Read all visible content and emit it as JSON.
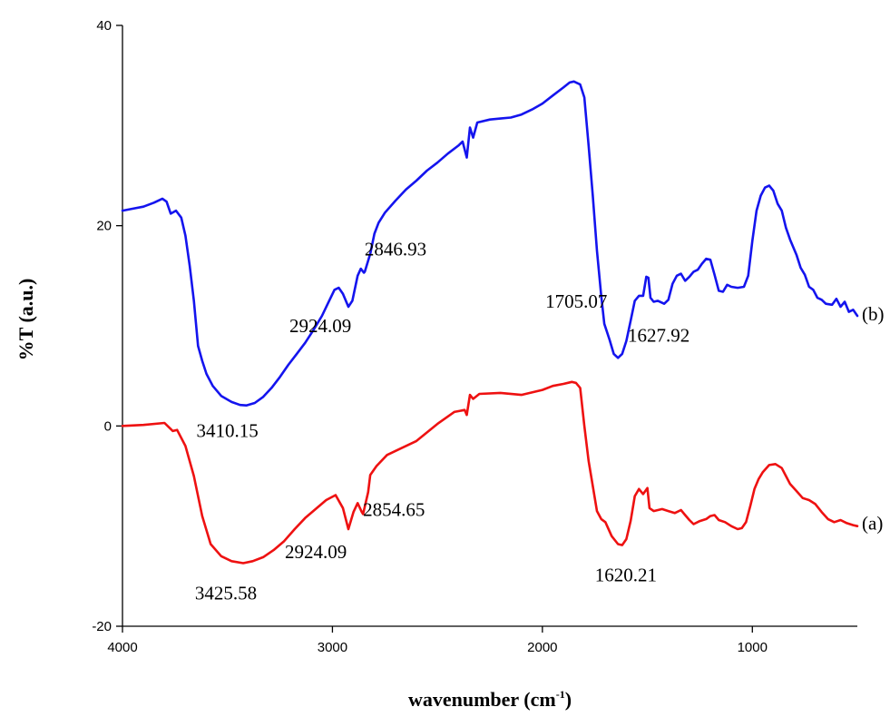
{
  "chart_data": {
    "type": "line",
    "xlabel": "wavenumber (cm",
    "xlabel_superscript": "-1",
    "xlabel_suffix": ")",
    "ylabel": "%T (a.u.)",
    "xlim": [
      4000,
      500
    ],
    "ylim": [
      -20,
      40
    ],
    "x_reversed": true,
    "x_ticks": [
      4000,
      3000,
      2000,
      1000
    ],
    "x_tick_labels": [
      "4000",
      "3000",
      "2000",
      "1000"
    ],
    "y_ticks": [
      -20,
      0,
      20,
      40
    ],
    "y_tick_labels": [
      "-20",
      "0",
      "20",
      "40"
    ],
    "grid": false,
    "series": [
      {
        "name": "(a)",
        "color": "#ee1111",
        "points": [
          [
            4000,
            0
          ],
          [
            3900,
            0.1
          ],
          [
            3800,
            0.3
          ],
          [
            3760,
            -0.5
          ],
          [
            3740,
            -0.4
          ],
          [
            3700,
            -2
          ],
          [
            3660,
            -5
          ],
          [
            3620,
            -9
          ],
          [
            3580,
            -11.8
          ],
          [
            3530,
            -13
          ],
          [
            3480,
            -13.5
          ],
          [
            3425,
            -13.7
          ],
          [
            3380,
            -13.5
          ],
          [
            3330,
            -13.1
          ],
          [
            3280,
            -12.4
          ],
          [
            3230,
            -11.5
          ],
          [
            3180,
            -10.3
          ],
          [
            3130,
            -9.2
          ],
          [
            3080,
            -8.3
          ],
          [
            3030,
            -7.4
          ],
          [
            2985,
            -6.9
          ],
          [
            2950,
            -8.2
          ],
          [
            2924,
            -10.3
          ],
          [
            2900,
            -8.6
          ],
          [
            2880,
            -7.7
          ],
          [
            2860,
            -8.6
          ],
          [
            2854,
            -8.8
          ],
          [
            2830,
            -6.6
          ],
          [
            2820,
            -4.9
          ],
          [
            2790,
            -4
          ],
          [
            2740,
            -2.9
          ],
          [
            2680,
            -2.3
          ],
          [
            2600,
            -1.5
          ],
          [
            2500,
            0.2
          ],
          [
            2420,
            1.4
          ],
          [
            2370,
            1.6
          ],
          [
            2360,
            1.1
          ],
          [
            2345,
            3.1
          ],
          [
            2330,
            2.7
          ],
          [
            2300,
            3.2
          ],
          [
            2200,
            3.3
          ],
          [
            2100,
            3.1
          ],
          [
            2000,
            3.6
          ],
          [
            1950,
            4
          ],
          [
            1900,
            4.2
          ],
          [
            1860,
            4.4
          ],
          [
            1840,
            4.3
          ],
          [
            1820,
            3.8
          ],
          [
            1800,
            0
          ],
          [
            1780,
            -3.5
          ],
          [
            1760,
            -6
          ],
          [
            1740,
            -8.5
          ],
          [
            1720,
            -9.3
          ],
          [
            1700,
            -9.6
          ],
          [
            1670,
            -11
          ],
          [
            1640,
            -11.8
          ],
          [
            1620,
            -11.9
          ],
          [
            1600,
            -11.3
          ],
          [
            1580,
            -9.5
          ],
          [
            1560,
            -7
          ],
          [
            1540,
            -6.3
          ],
          [
            1520,
            -6.8
          ],
          [
            1500,
            -6.2
          ],
          [
            1490,
            -8.2
          ],
          [
            1470,
            -8.5
          ],
          [
            1430,
            -8.3
          ],
          [
            1400,
            -8.5
          ],
          [
            1370,
            -8.7
          ],
          [
            1340,
            -8.4
          ],
          [
            1320,
            -8.9
          ],
          [
            1300,
            -9.4
          ],
          [
            1280,
            -9.8
          ],
          [
            1250,
            -9.5
          ],
          [
            1220,
            -9.3
          ],
          [
            1200,
            -9
          ],
          [
            1180,
            -8.9
          ],
          [
            1160,
            -9.4
          ],
          [
            1130,
            -9.6
          ],
          [
            1100,
            -10
          ],
          [
            1070,
            -10.3
          ],
          [
            1050,
            -10.2
          ],
          [
            1030,
            -9.6
          ],
          [
            1010,
            -8
          ],
          [
            990,
            -6.3
          ],
          [
            970,
            -5.3
          ],
          [
            950,
            -4.6
          ],
          [
            920,
            -3.9
          ],
          [
            890,
            -3.8
          ],
          [
            860,
            -4.2
          ],
          [
            840,
            -5
          ],
          [
            820,
            -5.8
          ],
          [
            790,
            -6.5
          ],
          [
            760,
            -7.2
          ],
          [
            730,
            -7.4
          ],
          [
            700,
            -7.8
          ],
          [
            670,
            -8.6
          ],
          [
            640,
            -9.3
          ],
          [
            610,
            -9.6
          ],
          [
            580,
            -9.4
          ],
          [
            550,
            -9.7
          ],
          [
            520,
            -9.9
          ],
          [
            500,
            -10
          ]
        ]
      },
      {
        "name": "(b)",
        "color": "#1414ee",
        "points": [
          [
            4000,
            21.5
          ],
          [
            3950,
            21.7
          ],
          [
            3900,
            21.9
          ],
          [
            3850,
            22.3
          ],
          [
            3810,
            22.7
          ],
          [
            3790,
            22.4
          ],
          [
            3770,
            21.2
          ],
          [
            3745,
            21.5
          ],
          [
            3720,
            20.8
          ],
          [
            3700,
            19
          ],
          [
            3680,
            16
          ],
          [
            3660,
            12.5
          ],
          [
            3640,
            8
          ],
          [
            3620,
            6.5
          ],
          [
            3600,
            5.2
          ],
          [
            3570,
            4
          ],
          [
            3530,
            3
          ],
          [
            3480,
            2.4
          ],
          [
            3440,
            2.1
          ],
          [
            3410,
            2.05
          ],
          [
            3370,
            2.3
          ],
          [
            3330,
            2.9
          ],
          [
            3290,
            3.8
          ],
          [
            3250,
            4.9
          ],
          [
            3210,
            6.1
          ],
          [
            3170,
            7.2
          ],
          [
            3130,
            8.3
          ],
          [
            3090,
            9.6
          ],
          [
            3050,
            11
          ],
          [
            3020,
            12.3
          ],
          [
            2990,
            13.6
          ],
          [
            2970,
            13.8
          ],
          [
            2950,
            13.2
          ],
          [
            2924,
            11.9
          ],
          [
            2905,
            12.5
          ],
          [
            2880,
            15
          ],
          [
            2865,
            15.7
          ],
          [
            2850,
            15.3
          ],
          [
            2846,
            15.4
          ],
          [
            2820,
            17.2
          ],
          [
            2800,
            19.2
          ],
          [
            2780,
            20.3
          ],
          [
            2750,
            21.3
          ],
          [
            2700,
            22.5
          ],
          [
            2650,
            23.6
          ],
          [
            2600,
            24.5
          ],
          [
            2550,
            25.5
          ],
          [
            2500,
            26.3
          ],
          [
            2450,
            27.2
          ],
          [
            2400,
            28
          ],
          [
            2380,
            28.4
          ],
          [
            2360,
            26.8
          ],
          [
            2345,
            29.8
          ],
          [
            2330,
            28.8
          ],
          [
            2310,
            30.3
          ],
          [
            2250,
            30.6
          ],
          [
            2200,
            30.7
          ],
          [
            2150,
            30.8
          ],
          [
            2100,
            31.1
          ],
          [
            2050,
            31.6
          ],
          [
            2000,
            32.2
          ],
          [
            1950,
            33
          ],
          [
            1900,
            33.8
          ],
          [
            1870,
            34.3
          ],
          [
            1850,
            34.4
          ],
          [
            1820,
            34.1
          ],
          [
            1800,
            32.8
          ],
          [
            1780,
            28
          ],
          [
            1760,
            23
          ],
          [
            1740,
            17.5
          ],
          [
            1720,
            13
          ],
          [
            1705,
            10.2
          ],
          [
            1680,
            8.6
          ],
          [
            1660,
            7.2
          ],
          [
            1640,
            6.8
          ],
          [
            1620,
            7.2
          ],
          [
            1600,
            8.5
          ],
          [
            1580,
            10.5
          ],
          [
            1560,
            12.5
          ],
          [
            1540,
            13
          ],
          [
            1520,
            13
          ],
          [
            1505,
            14.9
          ],
          [
            1495,
            14.8
          ],
          [
            1485,
            12.8
          ],
          [
            1470,
            12.4
          ],
          [
            1450,
            12.5
          ],
          [
            1420,
            12.2
          ],
          [
            1400,
            12.6
          ],
          [
            1380,
            14.2
          ],
          [
            1360,
            15
          ],
          [
            1340,
            15.2
          ],
          [
            1320,
            14.5
          ],
          [
            1300,
            14.9
          ],
          [
            1280,
            15.4
          ],
          [
            1260,
            15.6
          ],
          [
            1240,
            16.2
          ],
          [
            1220,
            16.7
          ],
          [
            1200,
            16.6
          ],
          [
            1180,
            15.1
          ],
          [
            1160,
            13.5
          ],
          [
            1140,
            13.4
          ],
          [
            1120,
            14.1
          ],
          [
            1100,
            13.9
          ],
          [
            1070,
            13.8
          ],
          [
            1040,
            13.9
          ],
          [
            1020,
            15
          ],
          [
            1000,
            18.5
          ],
          [
            980,
            21.5
          ],
          [
            960,
            23
          ],
          [
            940,
            23.8
          ],
          [
            920,
            24
          ],
          [
            900,
            23.5
          ],
          [
            880,
            22.2
          ],
          [
            860,
            21.5
          ],
          [
            840,
            19.8
          ],
          [
            820,
            18.6
          ],
          [
            790,
            17.1
          ],
          [
            770,
            15.8
          ],
          [
            750,
            15.1
          ],
          [
            730,
            13.9
          ],
          [
            710,
            13.6
          ],
          [
            690,
            12.8
          ],
          [
            670,
            12.6
          ],
          [
            650,
            12.2
          ],
          [
            620,
            12.1
          ],
          [
            600,
            12.7
          ],
          [
            580,
            11.9
          ],
          [
            560,
            12.4
          ],
          [
            540,
            11.4
          ],
          [
            520,
            11.6
          ],
          [
            500,
            11
          ]
        ]
      }
    ],
    "annotations": [
      {
        "text": "3410.15",
        "x": 3410.15,
        "y": 2.05
      },
      {
        "text": "2924.09",
        "x": 2924.09,
        "y": 11.9
      },
      {
        "text": "2846.93",
        "x": 2846.93,
        "y": 15.4
      },
      {
        "text": "1705.07",
        "x": 1705.07,
        "y": 10.2
      },
      {
        "text": "1627.92",
        "x": 1627.92,
        "y": 6.8
      },
      {
        "text": "(b)",
        "x": 500,
        "y": 11
      },
      {
        "text": "3425.58",
        "x": 3425.58,
        "y": -13.7
      },
      {
        "text": "2924.09",
        "x": 2924.09,
        "y": -10.3
      },
      {
        "text": "2854.65",
        "x": 2854.65,
        "y": -8.8
      },
      {
        "text": "1620.21",
        "x": 1620.21,
        "y": -11.9
      },
      {
        "text": "(a)",
        "x": 500,
        "y": -10
      }
    ]
  }
}
